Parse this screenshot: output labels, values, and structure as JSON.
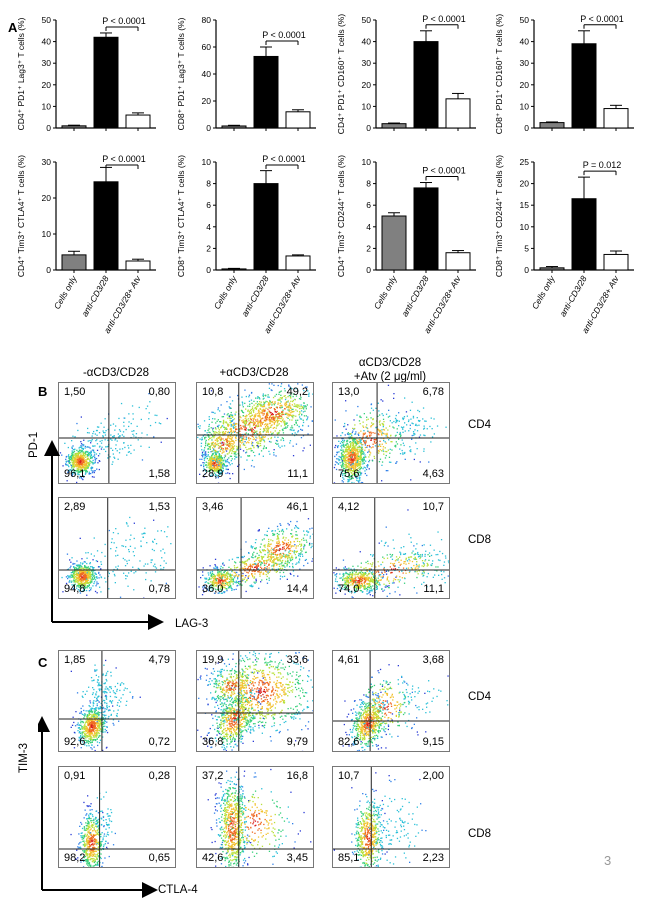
{
  "panel_a_label": "A",
  "panel_b_label": "B",
  "panel_c_label": "C",
  "page_number": "3",
  "categories": [
    "Cells only",
    "anti-CD3/28",
    "anti-CD3/28+ Atv"
  ],
  "colors": {
    "cells_only": "#808080",
    "anti": "#000000",
    "atv": "#ffffff"
  },
  "chart_data": [
    {
      "type": "bar",
      "ylabel": "CD4⁺ PD1⁺ Lag3⁺ T cells (%)",
      "ylim": [
        0,
        50
      ],
      "ticks": [
        "0",
        "10",
        "20",
        "30",
        "40",
        "50"
      ],
      "values": [
        1,
        42,
        6
      ],
      "errors": [
        0.3,
        2,
        1
      ],
      "pvalue": "P < 0.0001",
      "show_cat_labels": false
    },
    {
      "type": "bar",
      "ylabel": "CD8⁺ PD1⁺ Lag3⁺ T cells (%)",
      "ylim": [
        0,
        80
      ],
      "ticks": [
        "0",
        "20",
        "40",
        "60",
        "80"
      ],
      "values": [
        1.5,
        53,
        12
      ],
      "errors": [
        0.5,
        7,
        1.5
      ],
      "pvalue": "P < 0.0001",
      "show_cat_labels": false
    },
    {
      "type": "bar",
      "ylabel": "CD4⁺ PD1⁺ CD160⁺ T cells (%)",
      "ylim": [
        0,
        50
      ],
      "ticks": [
        "0",
        "10",
        "20",
        "30",
        "40",
        "50"
      ],
      "values": [
        2,
        40,
        13.5
      ],
      "errors": [
        0.3,
        5,
        2.5
      ],
      "pvalue": "P < 0.0001",
      "show_cat_labels": false
    },
    {
      "type": "bar",
      "ylabel": "CD8⁺ PD1⁺ CD160⁺ T cells (%)",
      "ylim": [
        0,
        50
      ],
      "ticks": [
        "0",
        "10",
        "20",
        "30",
        "40",
        "50"
      ],
      "values": [
        2.5,
        39,
        9
      ],
      "errors": [
        0.3,
        6,
        1.5
      ],
      "pvalue": "P < 0.0001",
      "show_cat_labels": false
    },
    {
      "type": "bar",
      "ylabel": "CD4⁺ Tim3⁺ CTLA4⁺ T cells (%)",
      "ylim": [
        0,
        30
      ],
      "ticks": [
        "0",
        "10",
        "20",
        "30"
      ],
      "values": [
        4.2,
        24.5,
        2.5
      ],
      "errors": [
        1,
        4,
        0.5
      ],
      "pvalue": "P < 0.0001",
      "show_cat_labels": true
    },
    {
      "type": "bar",
      "ylabel": "CD8⁺ Tim3⁺ CTLA4⁺ T cells (%)",
      "ylim": [
        0,
        10
      ],
      "ticks": [
        "0",
        "2",
        "4",
        "6",
        "8",
        "10"
      ],
      "values": [
        0.1,
        8,
        1.3
      ],
      "errors": [
        0.05,
        1.2,
        0.1
      ],
      "pvalue": "P < 0.0001",
      "show_cat_labels": true
    },
    {
      "type": "bar",
      "ylabel": "CD4⁺ Tim3⁺ CD244⁺ T cells (%)",
      "ylim": [
        0,
        10
      ],
      "ticks": [
        "0",
        "2",
        "4",
        "6",
        "8",
        "10"
      ],
      "values": [
        5,
        7.6,
        1.6
      ],
      "errors": [
        0.3,
        0.5,
        0.2
      ],
      "pvalue": "P < 0.0001",
      "show_cat_labels": true
    },
    {
      "type": "bar",
      "ylabel": "CD8⁺ Tim3⁺ CD244⁺ T cells (%)",
      "ylim": [
        0,
        25
      ],
      "ticks": [
        "0",
        "5",
        "10",
        "15",
        "20",
        "25"
      ],
      "values": [
        0.5,
        16.5,
        3.6
      ],
      "errors": [
        0.3,
        5,
        0.8
      ],
      "pvalue": "P = 0.012",
      "show_cat_labels": true
    }
  ],
  "panel_b": {
    "col_headers": [
      "-αCD3/CD28",
      "+αCD3/CD28",
      "αCD3/CD28\n+Atv (2 μg/ml)"
    ],
    "row_labels": [
      "CD4",
      "CD8"
    ],
    "y_axis": "PD-1",
    "x_axis": "LAG-3",
    "plots": [
      [
        {
          "tl": "1,50",
          "tr": "0,80",
          "bl": "96,1",
          "br": "1,58"
        },
        {
          "tl": "10,8",
          "tr": "49,2",
          "bl": "28,9",
          "br": "11,1"
        },
        {
          "tl": "13,0",
          "tr": "6,78",
          "bl": "75,6",
          "br": "4,63"
        }
      ],
      [
        {
          "tl": "2,89",
          "tr": "1,53",
          "bl": "94,8",
          "br": "0,78"
        },
        {
          "tl": "3,46",
          "tr": "46,1",
          "bl": "36,0",
          "br": "14,4"
        },
        {
          "tl": "4,12",
          "tr": "10,7",
          "bl": "74,0",
          "br": "11,1"
        }
      ]
    ]
  },
  "panel_c": {
    "row_labels": [
      "CD4",
      "CD8"
    ],
    "y_axis": "TIM-3",
    "x_axis": "CTLA-4",
    "plots": [
      [
        {
          "tl": "1,85",
          "tr": "4,79",
          "bl": "92,6",
          "br": "0,72"
        },
        {
          "tl": "19,9",
          "tr": "33,6",
          "bl": "36,8",
          "br": "9,79"
        },
        {
          "tl": "4,61",
          "tr": "3,68",
          "bl": "82,6",
          "br": "9,15"
        }
      ],
      [
        {
          "tl": "0,91",
          "tr": "0,28",
          "bl": "98,2",
          "br": "0,65"
        },
        {
          "tl": "37,2",
          "tr": "16,8",
          "bl": "42,6",
          "br": "3,45"
        },
        {
          "tl": "10,7",
          "tr": "2,00",
          "bl": "85,1",
          "br": "2,23"
        }
      ]
    ]
  }
}
